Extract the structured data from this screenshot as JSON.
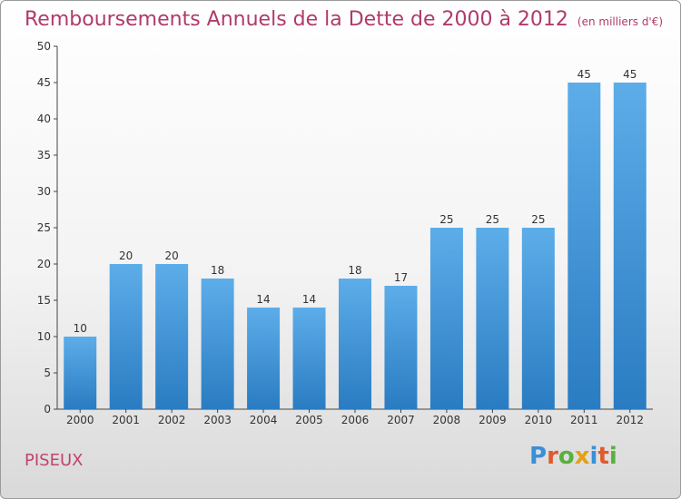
{
  "title": "Remboursements Annuels de la Dette de 2000 à 2012",
  "unit": "(en milliers d'€)",
  "town": "PISEUX",
  "logo": {
    "letters": [
      "P",
      "r",
      "o",
      "x",
      "i",
      "t",
      "i"
    ],
    "colors": [
      "#3a8fd6",
      "#e05a2b",
      "#58b13d",
      "#e3a117",
      "#3a8fd6",
      "#e05a2b",
      "#58b13d"
    ]
  },
  "colors": {
    "bar_top": "#5dade9",
    "bar_bottom": "#2a7cc2",
    "title": "#b03a6b"
  },
  "chart_data": {
    "type": "bar",
    "categories": [
      "2000",
      "2001",
      "2002",
      "2003",
      "2004",
      "2005",
      "2006",
      "2007",
      "2008",
      "2009",
      "2010",
      "2011",
      "2012"
    ],
    "values": [
      10,
      20,
      20,
      18,
      14,
      14,
      18,
      17,
      25,
      25,
      25,
      45,
      45
    ],
    "data_labels": [
      "10",
      "20",
      "20",
      "18",
      "14",
      "14",
      "18",
      "17",
      "25",
      "25",
      "25",
      "45",
      "45"
    ],
    "yticks": [
      "0",
      "5",
      "10",
      "15",
      "20",
      "25",
      "30",
      "35",
      "40",
      "45",
      "50"
    ],
    "ylim": [
      0,
      50
    ],
    "grid": false
  }
}
